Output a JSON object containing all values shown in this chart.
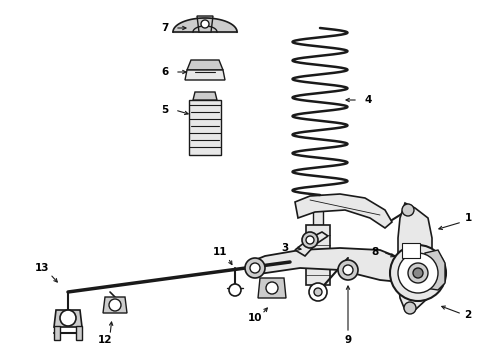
{
  "background_color": "#ffffff",
  "line_color": "#1a1a1a",
  "label_color": "#000000",
  "fig_width": 4.9,
  "fig_height": 3.6,
  "dpi": 100,
  "gray_fill": "#cccccc",
  "dark_fill": "#888888",
  "light_fill": "#e8e8e8"
}
